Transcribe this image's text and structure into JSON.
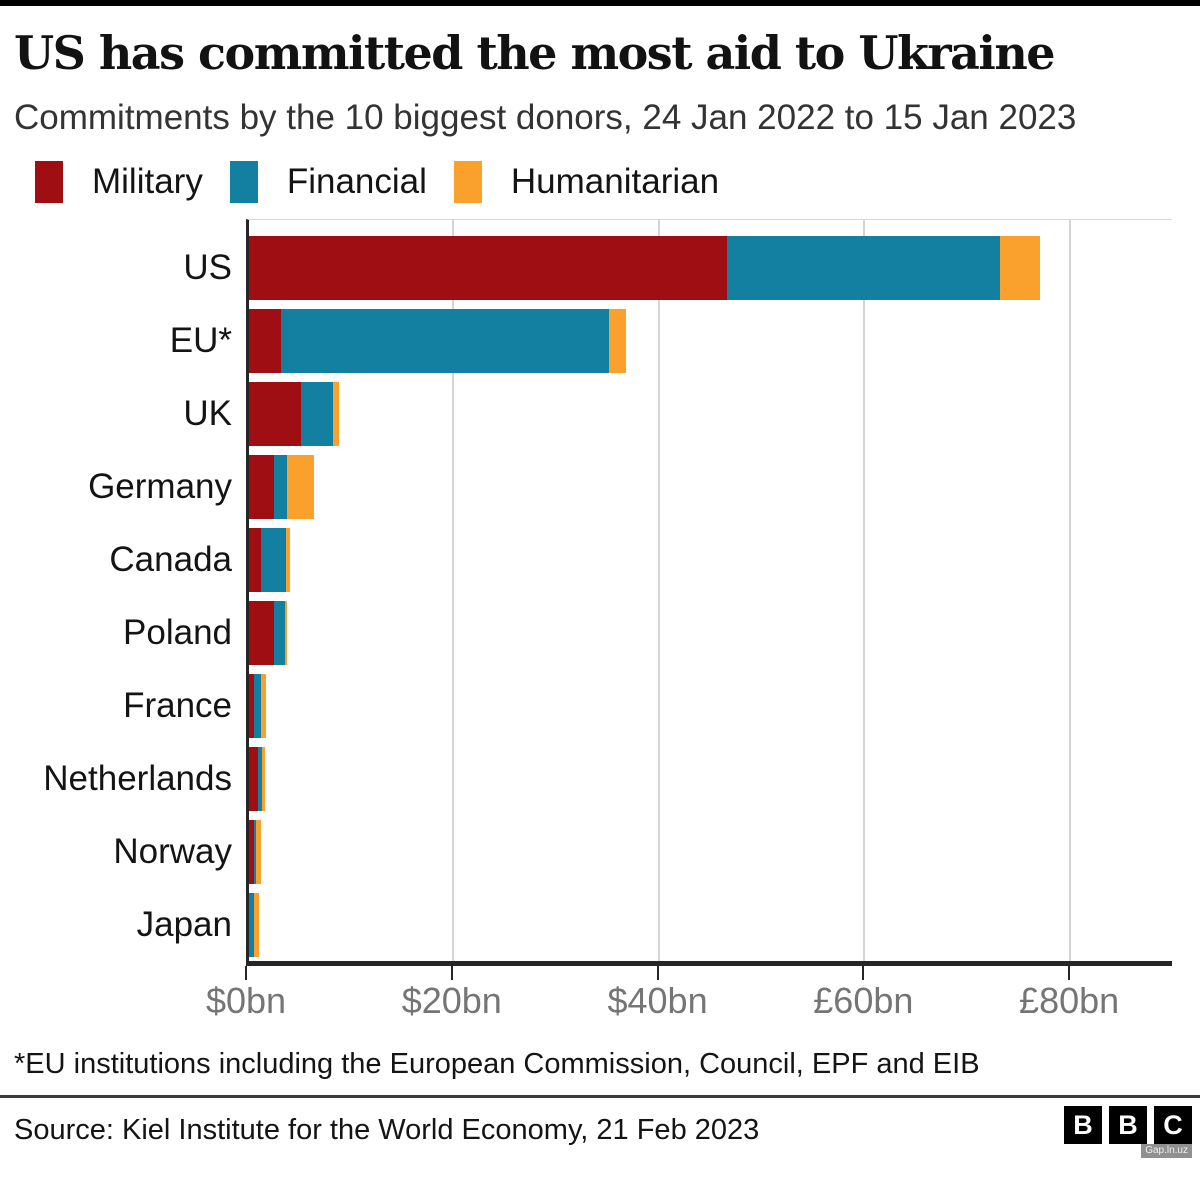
{
  "page": {
    "title": "US has committed the most aid to Ukraine",
    "subtitle": "Commitments by the 10 biggest donors, 24 Jan 2022 to 15 Jan 2023",
    "footnote": "*EU institutions including the European Commission, Council, EPF and EIB",
    "source": "Source: Kiel Institute for the World Economy, 21 Feb 2023",
    "logo_letters": [
      "B",
      "B",
      "C"
    ],
    "watermark": "Gap.ln.uz"
  },
  "colors": {
    "military": "#9f0e12",
    "financial": "#1380a1",
    "humanitarian": "#f9a12c",
    "gridline": "#d5d5d5",
    "axis": "#262626",
    "tick_label": "#757575"
  },
  "chart_data": {
    "type": "bar",
    "orientation": "horizontal",
    "stacked": true,
    "title": "US has committed the most aid to Ukraine",
    "subtitle": "Commitments by the 10 biggest donors, 24 Jan 2022 to 15 Jan 2023",
    "unit": "billions",
    "legend_position": "top",
    "grid": "vertical",
    "xlim": [
      0,
      90
    ],
    "categories": [
      "US",
      "EU*",
      "UK",
      "Germany",
      "Canada",
      "Poland",
      "France",
      "Netherlands",
      "Norway",
      "Japan"
    ],
    "series": [
      {
        "name": "Military",
        "color": "#9f0e12",
        "values": [
          46.5,
          3.1,
          5.1,
          2.4,
          1.2,
          2.4,
          0.5,
          0.9,
          0.5,
          0
        ]
      },
      {
        "name": "Financial",
        "color": "#1380a1",
        "values": [
          26.5,
          31.9,
          3.1,
          1.3,
          2.4,
          1.1,
          0.7,
          0.4,
          0.2,
          0.5
        ]
      },
      {
        "name": "Humanitarian",
        "color": "#f9a12c",
        "values": [
          3.9,
          1.6,
          0.5,
          2.6,
          0.4,
          0.2,
          0.5,
          0.3,
          0.5,
          0.5
        ]
      }
    ],
    "x_ticks": [
      {
        "value": 0,
        "label": "$0bn"
      },
      {
        "value": 20,
        "label": "$20bn"
      },
      {
        "value": 40,
        "label": "$40bn"
      },
      {
        "value": 60,
        "label": "£60bn"
      },
      {
        "value": 80,
        "label": "£80bn"
      }
    ]
  }
}
